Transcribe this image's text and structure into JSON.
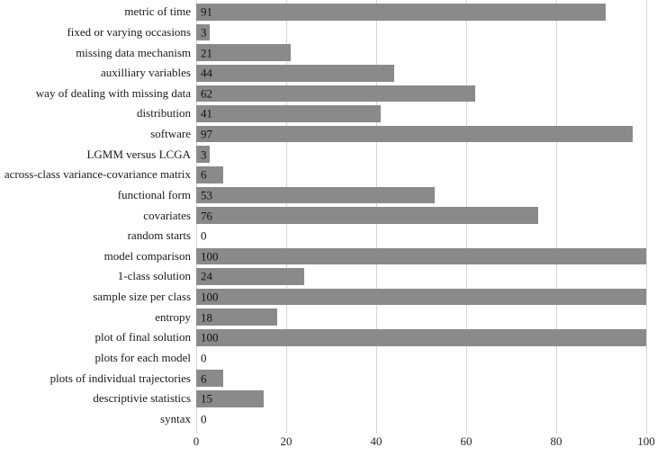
{
  "chart_data": {
    "type": "bar",
    "orientation": "horizontal",
    "title": "",
    "xlabel": "",
    "ylabel": "",
    "categories": [
      "metric of time",
      "fixed or varying occasions",
      "missing data mechanism",
      "auxilliary variables",
      "way of dealing with missing data",
      "distribution",
      "software",
      "LGMM versus LCGA",
      "across-class variance-covariance matrix",
      "functional form",
      "covariates",
      "random starts",
      "model comparison",
      "1-class solution",
      "sample size per class",
      "entropy",
      "plot of final solution",
      "plots for each model",
      "plots of individual trajectories",
      "descriptivie statistics",
      "syntax"
    ],
    "values": [
      91,
      3,
      21,
      44,
      62,
      41,
      97,
      3,
      6,
      53,
      76,
      0,
      100,
      24,
      100,
      18,
      100,
      0,
      6,
      15,
      0
    ],
    "value_labels": [
      "91",
      "3",
      "21",
      "44",
      "62",
      "41",
      "97",
      "3",
      "6",
      "53",
      "76",
      "0",
      "100",
      "24",
      "100",
      "18",
      "100",
      "0",
      "6",
      "15",
      "0"
    ],
    "xlim": [
      0,
      100
    ],
    "x_ticks": [
      0,
      20,
      40,
      60,
      80,
      100
    ],
    "x_tick_labels": [
      "0",
      "20",
      "40",
      "60",
      "80",
      "100"
    ],
    "grid": "vertical",
    "legend": "none",
    "data_labels": "inside-base",
    "bar_color": "#8a8a8a",
    "gridline_color": "#d4d4d4",
    "text_color": "#1a1a1a",
    "background_color": "#ffffff"
  }
}
